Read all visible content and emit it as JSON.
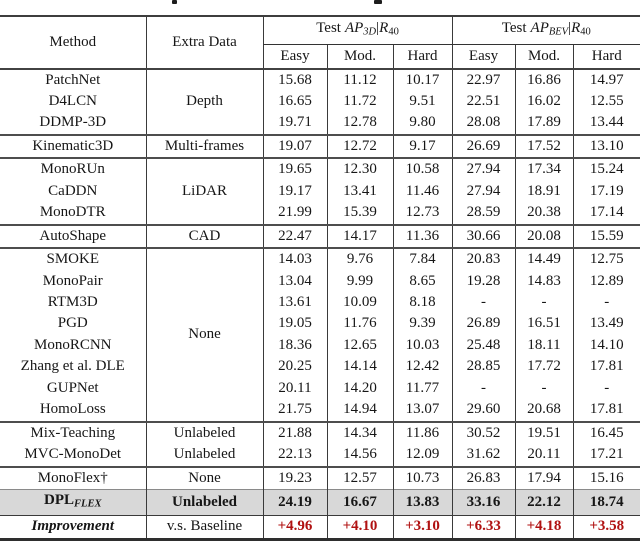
{
  "colors": {
    "highlight_row_bg": "#d8d8d8",
    "improvement_red": "#b01111",
    "rule_dark": "#3a3a3a",
    "text": "#161616"
  },
  "table": {
    "headers": {
      "method": "Method",
      "extra_data": "Extra Data",
      "group_3d": {
        "prefix": "Test",
        "ap": "AP",
        "ap_sub": "3D",
        "bar": "|",
        "r": "R",
        "r_sub": "40"
      },
      "group_bev": {
        "prefix": "Test",
        "ap": "AP",
        "ap_sub": "BEV",
        "bar": "|",
        "r": "R",
        "r_sub": "40"
      },
      "sub_columns": [
        "Easy",
        "Mod.",
        "Hard",
        "Easy",
        "Mod.",
        "Hard"
      ]
    },
    "rows": [
      {
        "method": "PatchNet",
        "extra": "Depth",
        "extra_rowspan": 3,
        "values": [
          "15.68",
          "11.12",
          "10.17",
          "22.97",
          "16.86",
          "14.97"
        ]
      },
      {
        "method": "D4LCN",
        "values": [
          "16.65",
          "11.72",
          "9.51",
          "22.51",
          "16.02",
          "12.55"
        ]
      },
      {
        "method": "DDMP-3D",
        "values": [
          "19.71",
          "12.78",
          "9.80",
          "28.08",
          "17.89",
          "13.44"
        ]
      },
      {
        "method": "Kinematic3D",
        "extra": "Multi-frames",
        "extra_rowspan": 1,
        "group_start": true,
        "values": [
          "19.07",
          "12.72",
          "9.17",
          "26.69",
          "17.52",
          "13.10"
        ]
      },
      {
        "method": "MonoRUn",
        "extra": "LiDAR",
        "extra_rowspan": 3,
        "group_start": true,
        "values": [
          "19.65",
          "12.30",
          "10.58",
          "27.94",
          "17.34",
          "15.24"
        ]
      },
      {
        "method": "CaDDN",
        "values": [
          "19.17",
          "13.41",
          "11.46",
          "27.94",
          "18.91",
          "17.19"
        ]
      },
      {
        "method": "MonoDTR",
        "values": [
          "21.99",
          "15.39",
          "12.73",
          "28.59",
          "20.38",
          "17.14"
        ]
      },
      {
        "method": "AutoShape",
        "extra": "CAD",
        "extra_rowspan": 1,
        "group_start": true,
        "values": [
          "22.47",
          "14.17",
          "11.36",
          "30.66",
          "20.08",
          "15.59"
        ]
      },
      {
        "method": "SMOKE",
        "extra": "None",
        "extra_rowspan": 8,
        "group_start": true,
        "values": [
          "14.03",
          "9.76",
          "7.84",
          "20.83",
          "14.49",
          "12.75"
        ]
      },
      {
        "method": "MonoPair",
        "values": [
          "13.04",
          "9.99",
          "8.65",
          "19.28",
          "14.83",
          "12.89"
        ]
      },
      {
        "method": "RTM3D",
        "values": [
          "13.61",
          "10.09",
          "8.18",
          "-",
          "-",
          "-"
        ]
      },
      {
        "method": "PGD",
        "values": [
          "19.05",
          "11.76",
          "9.39",
          "26.89",
          "16.51",
          "13.49"
        ]
      },
      {
        "method": "MonoRCNN",
        "values": [
          "18.36",
          "12.65",
          "10.03",
          "25.48",
          "18.11",
          "14.10"
        ]
      },
      {
        "method": "Zhang et al. DLE",
        "values": [
          "20.25",
          "14.14",
          "12.42",
          "28.85",
          "17.72",
          "17.81"
        ]
      },
      {
        "method": "GUPNet",
        "values": [
          "20.11",
          "14.20",
          "11.77",
          "-",
          "-",
          "-"
        ]
      },
      {
        "method": "HomoLoss",
        "values": [
          "21.75",
          "14.94",
          "13.07",
          "29.60",
          "20.68",
          "17.81"
        ]
      },
      {
        "method": "Mix-Teaching",
        "extra": "Unlabeled",
        "extra_rowspan": 1,
        "group_start": true,
        "values": [
          "21.88",
          "14.34",
          "11.86",
          "30.52",
          "19.51",
          "16.45"
        ]
      },
      {
        "method": "MVC-MonoDet",
        "extra": "Unlabeled",
        "extra_rowspan": 1,
        "values": [
          "22.13",
          "14.56",
          "12.09",
          "31.62",
          "20.11",
          "17.21"
        ]
      },
      {
        "method": "MonoFlex†",
        "extra": "None",
        "extra_rowspan": 1,
        "group_start": true,
        "values": [
          "19.23",
          "12.57",
          "10.73",
          "26.83",
          "17.94",
          "15.16"
        ]
      },
      {
        "method_base": "DPL",
        "method_sub": "FLEX",
        "extra": "Unlabeled",
        "extra_rowspan": 1,
        "highlight": true,
        "values": [
          "24.19",
          "16.67",
          "13.83",
          "33.16",
          "22.12",
          "18.74"
        ]
      },
      {
        "method": "Improvement",
        "extra": "v.s. Baseline",
        "extra_rowspan": 1,
        "improvement": true,
        "values": [
          "+4.96",
          "+4.10",
          "+3.10",
          "+6.33",
          "+4.18",
          "+3.58"
        ]
      }
    ]
  }
}
